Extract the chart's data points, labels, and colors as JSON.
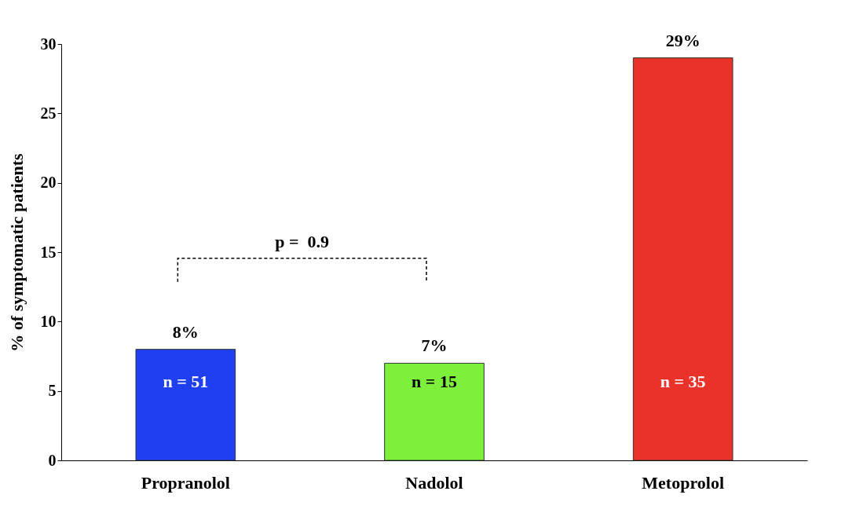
{
  "chart_data": {
    "type": "bar",
    "ylabel": "% of symptomatic patients",
    "categories": [
      "Propranolol",
      "Nadolol",
      "Metoprolol"
    ],
    "values": [
      8,
      7,
      29
    ],
    "colors": [
      "#1f3ff0",
      "#7cf03a",
      "#e8322a"
    ],
    "value_labels": [
      "8%",
      "7%",
      "29%"
    ],
    "ylim": [
      0,
      30
    ],
    "yticks": [
      0,
      5,
      10,
      15,
      20,
      25,
      30
    ],
    "grid": false,
    "legend": false,
    "annotations": [
      "n = 51",
      "n = 15",
      "n = 35",
      "p =  0.9"
    ]
  }
}
